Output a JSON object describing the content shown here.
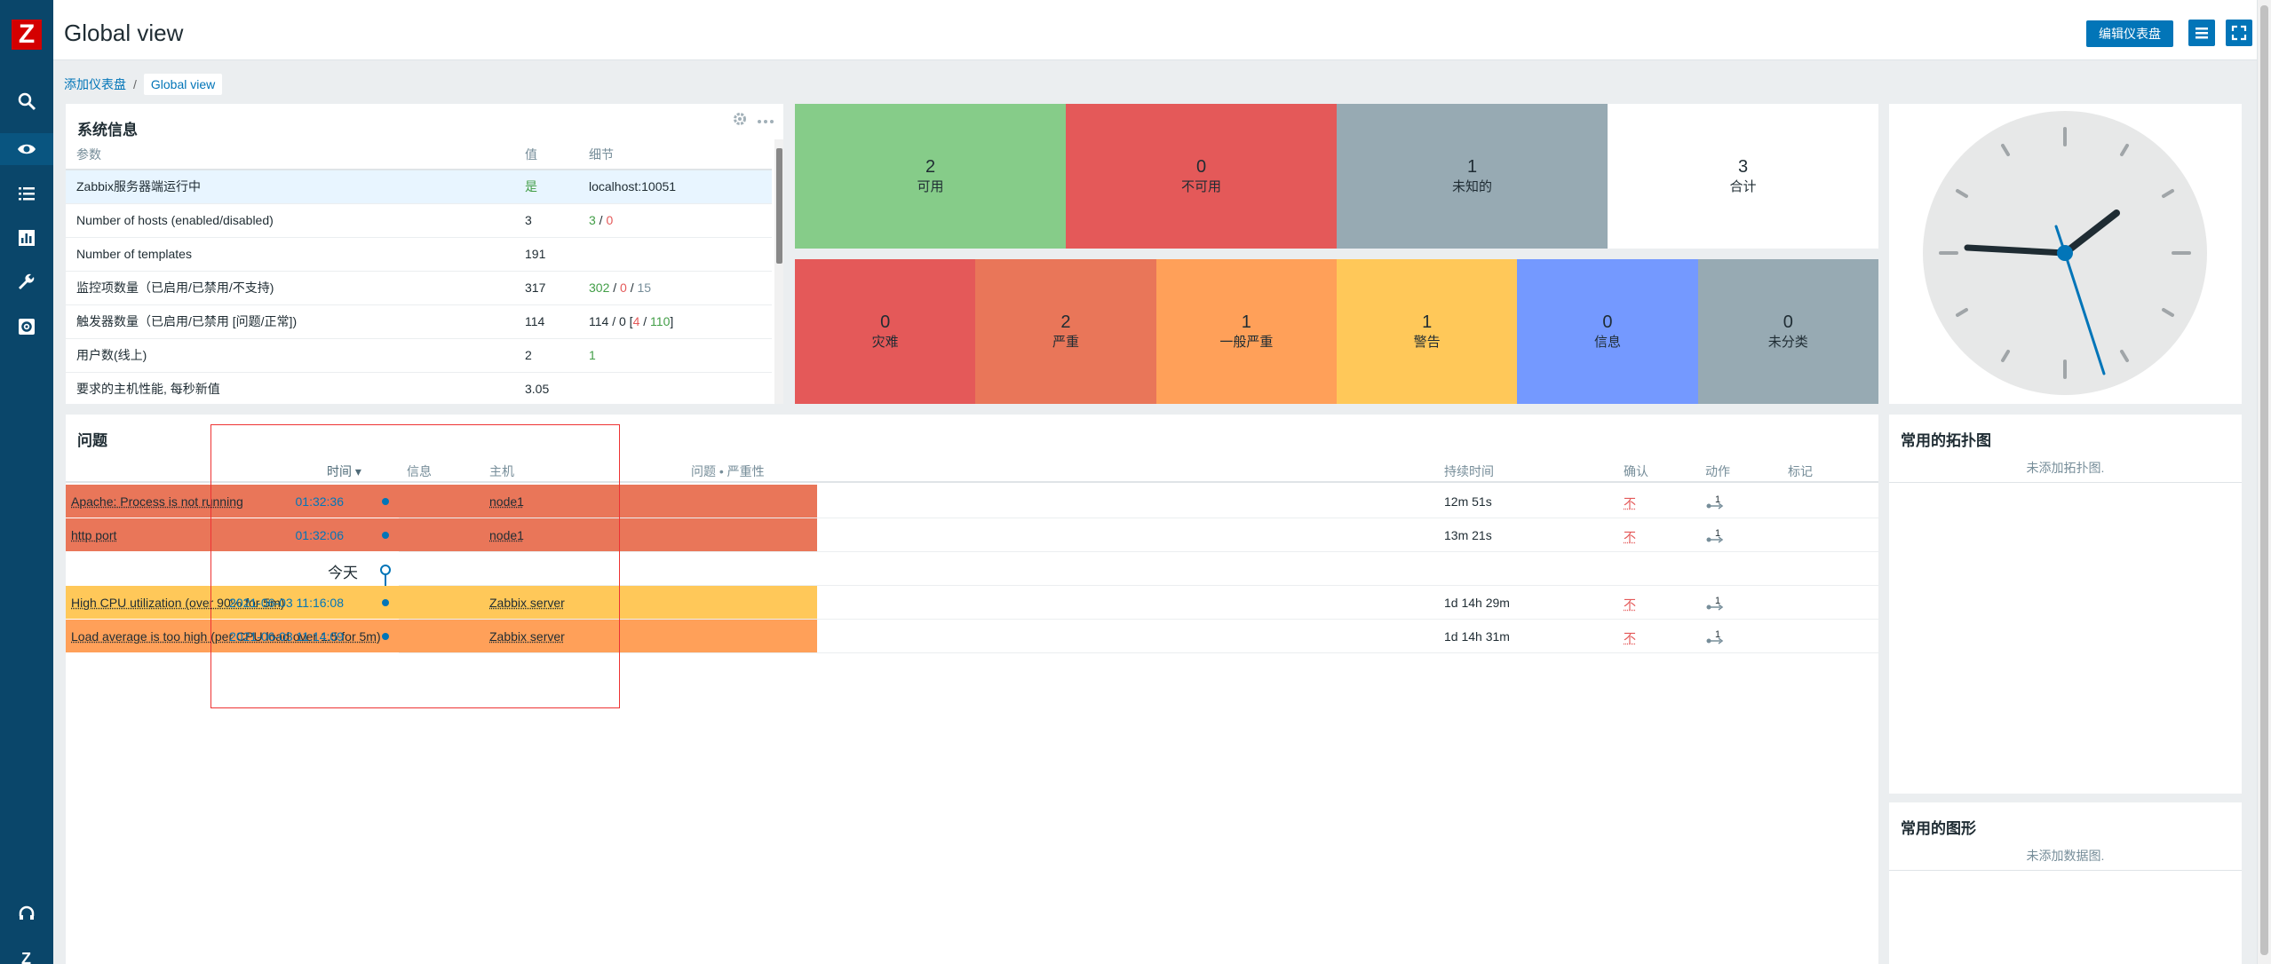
{
  "app": {
    "logo": "Z",
    "title": "Global view"
  },
  "header": {
    "edit_button": "编辑仪表盘"
  },
  "breadcrumb": {
    "parent": "添加仪表盘",
    "current": "Global view"
  },
  "system_info": {
    "title": "系统信息",
    "columns": [
      "参数",
      "值",
      "细节"
    ],
    "rows": [
      {
        "param": "Zabbix服务器端运行中",
        "value": "是",
        "detail": "localhost:10051"
      },
      {
        "param": "Number of hosts (enabled/disabled)",
        "value": "3",
        "d1": "3",
        "d2": "0"
      },
      {
        "param": "Number of templates",
        "value": "191"
      },
      {
        "param": "监控项数量（已启用/已禁用/不支持)",
        "value": "317",
        "d1": "302",
        "d2": "0",
        "d3": "15"
      },
      {
        "param": "触发器数量（已启用/已禁用 [问题/正常])",
        "value": "114",
        "dprefix": "114 / 0 [",
        "d1": "4",
        "d2": "110",
        "dsuffix": "]"
      },
      {
        "param": "用户数(线上)",
        "value": "2",
        "d1": "1"
      },
      {
        "param": "要求的主机性能, 每秒新值",
        "value": "3.05"
      }
    ]
  },
  "host_availability": [
    {
      "count": "2",
      "label": "可用",
      "color": "#86cc89"
    },
    {
      "count": "0",
      "label": "不可用",
      "color": "#e45959"
    },
    {
      "count": "1",
      "label": "未知的",
      "color": "#97aab3"
    },
    {
      "count": "3",
      "label": "合计",
      "color": "#ffffff"
    }
  ],
  "problems_by_severity": [
    {
      "count": "0",
      "label": "灾难",
      "color": "#e45959"
    },
    {
      "count": "2",
      "label": "严重",
      "color": "#e97659"
    },
    {
      "count": "1",
      "label": "一般严重",
      "color": "#ffa059"
    },
    {
      "count": "1",
      "label": "警告",
      "color": "#ffc859"
    },
    {
      "count": "0",
      "label": "信息",
      "color": "#7499ff"
    },
    {
      "count": "0",
      "label": "未分类",
      "color": "#97aab3"
    }
  ],
  "problems": {
    "title": "问题",
    "columns": {
      "time": "时间 ▾",
      "info": "信息",
      "host": "主机",
      "problem": "问题 • 严重性",
      "duration": "持续时间",
      "ack": "确认",
      "actions": "动作",
      "tags": "标记"
    },
    "today_label": "今天",
    "rows": [
      {
        "time": "01:32:36",
        "host": "node1",
        "problem": "Apache: Process is not running",
        "duration": "12m 51s",
        "ack": "不",
        "actions": "1",
        "color": "#e97659"
      },
      {
        "time": "01:32:06",
        "host": "node1",
        "problem": "http port",
        "duration": "13m 21s",
        "ack": "不",
        "actions": "1",
        "color": "#e97659"
      },
      {
        "time": "2021-06-03 11:16:08",
        "host": "Zabbix server",
        "problem": "High CPU utilization (over 90% for 5m)",
        "duration": "1d 14h 29m",
        "ack": "不",
        "actions": "1",
        "color": "#ffc859"
      },
      {
        "time": "2021-06-03 11:14:09",
        "host": "Zabbix server",
        "problem": "Load average is too high (per CPU load over 1.5 for 5m)",
        "duration": "1d 14h 31m",
        "ack": "不",
        "actions": "1",
        "color": "#ffa059"
      }
    ]
  },
  "favorite_maps": {
    "title": "常用的拓扑图",
    "empty": "未添加拓扑图."
  },
  "favorite_graphs": {
    "title": "常用的图形",
    "empty": "未添加数据图."
  }
}
